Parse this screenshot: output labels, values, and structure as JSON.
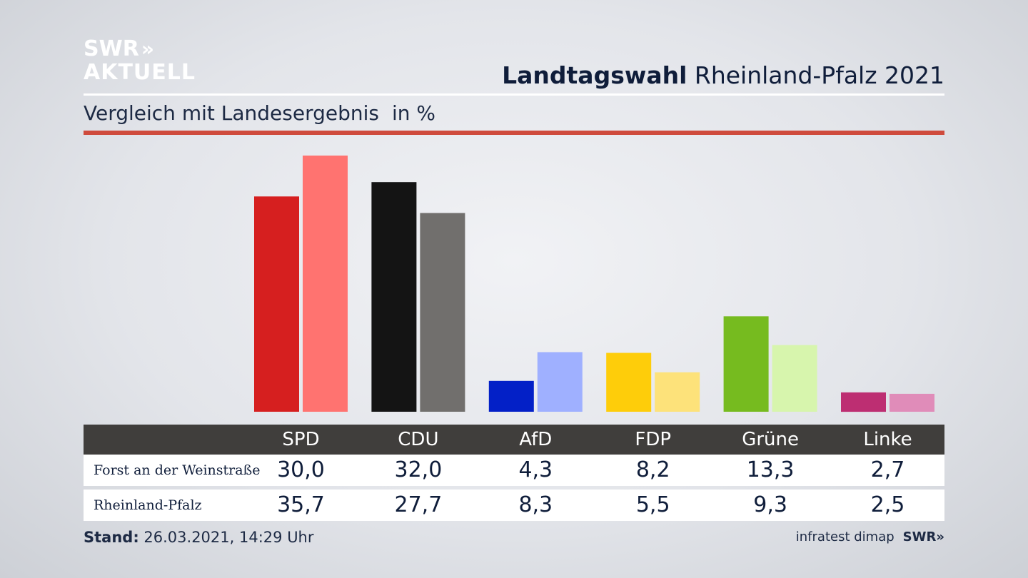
{
  "logo": {
    "line1": "SWR",
    "line2": "AKTUELL",
    "chevrons": "»"
  },
  "header": {
    "title_bold": "Landtagswahl",
    "title_rest": "Rheinland-Pfalz 2021"
  },
  "subtitle": {
    "text": "Vergleich mit Landesergebnis",
    "unit": "in %"
  },
  "colors": {
    "SPD": [
      "#d61f1f",
      "#ff7370"
    ],
    "CDU": [
      "#141414",
      "#716f6d"
    ],
    "AfD": [
      "#0320c7",
      "#9fb0ff"
    ],
    "FDP": [
      "#fecd0a",
      "#fde27a"
    ],
    "Grüne": [
      "#76bb1f",
      "#d7f5ad"
    ],
    "Linke": [
      "#bd2e72",
      "#e08cb9"
    ]
  },
  "chart_data": {
    "type": "bar",
    "categories": [
      "SPD",
      "CDU",
      "AfD",
      "FDP",
      "Grüne",
      "Linke"
    ],
    "series": [
      {
        "name": "Forst an der Weinstraße",
        "values": [
          30.0,
          32.0,
          4.3,
          8.2,
          13.3,
          2.7
        ]
      },
      {
        "name": "Rheinland-Pfalz",
        "values": [
          35.7,
          27.7,
          8.3,
          5.5,
          9.3,
          2.5
        ]
      }
    ],
    "value_labels": [
      [
        "30,0",
        "32,0",
        "4,3",
        "8,2",
        "13,3",
        "2,7"
      ],
      [
        "35,7",
        "27,7",
        "8,3",
        "5,5",
        "9,3",
        "2,5"
      ]
    ],
    "ylim": [
      0,
      36
    ],
    "grid": false,
    "legend": "table-below"
  },
  "footer": {
    "stand_label": "Stand:",
    "stand_value": "26.03.2021, 14:29 Uhr",
    "source": "infratest dimap",
    "source_logo": "SWR"
  }
}
